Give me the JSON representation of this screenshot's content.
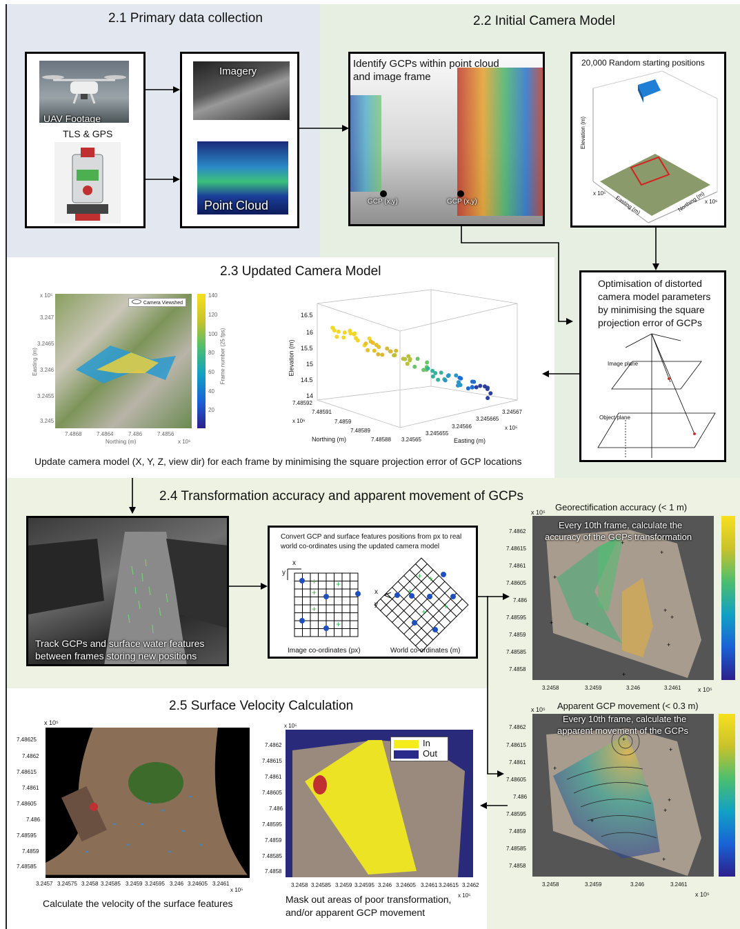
{
  "s21": {
    "title": "2.1 Primary data collection",
    "uav": "UAV Footage",
    "tls": "TLS & GPS",
    "imagery": "Imagery",
    "pointcloud": "Point Cloud"
  },
  "s22": {
    "title": "2.2 Initial Camera Model",
    "identify_l1": "Identify GCPs within point cloud",
    "identify_l2": "and image frame",
    "gcp1": "GCP (x,y)",
    "gcp2": "GCP (x,y)",
    "random": "20,000 Random starting positions",
    "elev": "Elevation (m)",
    "easting": "Easting (m)",
    "northing": "Northing (m)",
    "exp5": "x 10⁵",
    "exp6": "x 10⁶"
  },
  "opt": {
    "l1": "Optimisation of distorted",
    "l2": "camera model parameters",
    "l3": "by minimising the square",
    "l4": "projection  error of GCPs",
    "image_plane": "Image plane",
    "object_plane": "Object plane"
  },
  "s23": {
    "title": "2.3 Updated Camera Model",
    "legend": "Camera Viewshed",
    "map_ylabel": "Easting (m)",
    "map_xlabel": "Northing (m)",
    "map_exp_y": "x 10⁵",
    "map_exp_x": "x 10⁶",
    "map_yticks": [
      "3.247",
      "3.2465",
      "3.246",
      "3.2455",
      "3.245"
    ],
    "map_xticks": [
      "7.4868",
      "7.4864",
      "7.486",
      "7.4856"
    ],
    "cbar_label": "Frame number (25 fps)",
    "cbar_ticks": [
      "140",
      "120",
      "100",
      "80",
      "60",
      "40",
      "20"
    ],
    "caption": "Update camera model (X, Y, Z, view dir) for each frame by minimising the square projection error of GCP locations"
  },
  "chart_data": {
    "type": "scatter",
    "zlabel": "Elevation (m)",
    "xlabel": "Northing (m)",
    "ylabel": "Easting (m)",
    "z_ticks": [
      "16.5",
      "16",
      "15.5",
      "15",
      "14.5",
      "14"
    ],
    "northing_ticks": [
      "7.48592",
      "7.48591",
      "7.4859",
      "7.48589",
      "7.48588"
    ],
    "easting_ticks": [
      "3.24565",
      "3.245655",
      "3.24566",
      "3.245665",
      "3.24567"
    ],
    "northing_exp": "x 10⁶",
    "easting_exp": "x 10⁵",
    "zlim": [
      14,
      16.5
    ],
    "color_by": "frame number"
  },
  "s24": {
    "title": "2.4 Transformation accuracy and apparent movement of GCPs",
    "track_l1": "Track GCPs and surface water features",
    "track_l2": "between frames storing new positions",
    "convert_l1": "Convert GCP and surface features positions from px to real",
    "convert_l2": "world co-ordinates using the updated camera model",
    "img_coords": "Image co-ordinates (px)",
    "world_coords": "World co-ordinates (m)",
    "x": "x",
    "y": "y",
    "geo_title": "Georectification accuracy (< 1 m)",
    "geo_l1": "Every 10th frame, calculate the",
    "geo_l2": "accuracy of the GCPs transformation",
    "move_title": "Apparent GCP movement (< 0.3 m)",
    "move_l1": "Every 10th frame, calculate the",
    "move_l2": "apparent movement of the GCPs",
    "yticks": [
      "7.4862",
      "7.48615",
      "7.4861",
      "7.48605",
      "7.486",
      "7.48595",
      "7.4859",
      "7.48585",
      "7.4858"
    ],
    "xticks": [
      "3.2458",
      "3.2459",
      "3.246",
      "3.2461"
    ],
    "exp5": "x 10⁵"
  },
  "s25": {
    "title": "2.5 Surface Velocity Calculation",
    "vel_caption": "Calculate the velocity of the surface features",
    "vel_yticks": [
      "7.48625",
      "7.4862",
      "7.48615",
      "7.4861",
      "7.48605",
      "7.486",
      "7.48595",
      "7.4859",
      "7.48585"
    ],
    "vel_xticks": [
      "3.2457",
      "3.24575",
      "3.2458",
      "3.24585",
      "3.2459",
      "3.24595",
      "3.246",
      "3.24605",
      "3.2461"
    ],
    "mask_caption_l1": "Mask out areas of poor transformation,",
    "mask_caption_l2": "and/or apparent GCP movement",
    "mask_yticks": [
      "7.4862",
      "7.48615",
      "7.4861",
      "7.48605",
      "7.486",
      "7.48595",
      "7.4859",
      "7.48585",
      "7.4858"
    ],
    "mask_xticks": [
      "3.2458",
      "3.24585",
      "3.2459",
      "3.24595",
      "3.246",
      "3.24605",
      "3.2461",
      "3.24615",
      "3.2462"
    ],
    "legend_in": "In",
    "legend_out": "Out",
    "exp5": "x 10⁵"
  },
  "colors": {
    "panel21": "#e3e7ef",
    "panel22": "#e6efe2",
    "panel24": "#eef2e2",
    "mask_in": "#f5ec1c",
    "mask_out": "#2a2a8a"
  }
}
